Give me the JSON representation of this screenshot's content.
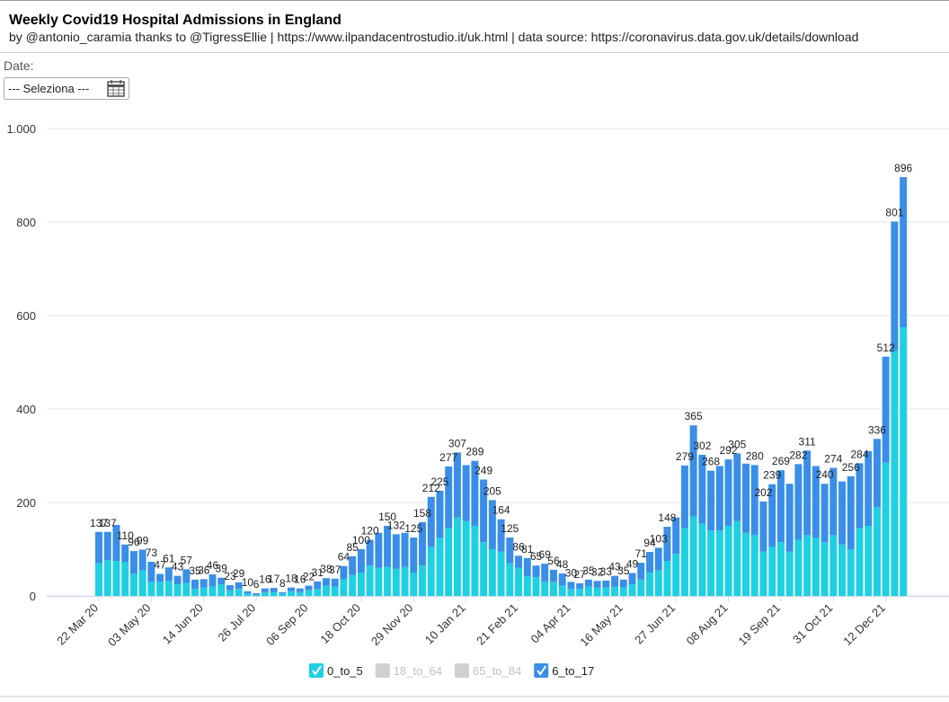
{
  "header": {
    "title": "Weekly Covid19 Hospital Admissions in England",
    "subtitle": "by @antonio_caramia thanks to @TigressEllie | https://www.ilpandacentrostudio.it/uk.html | data source: https://coronavirus.data.gov.uk/details/download"
  },
  "filter": {
    "label": "Date:",
    "placeholder": "--- Seleziona ---"
  },
  "chart_data": {
    "type": "stacked_bar",
    "categories": [
      "22 Mar 20",
      null,
      null,
      null,
      null,
      null,
      "03 May 20",
      null,
      null,
      null,
      null,
      null,
      "14 Jun 20",
      null,
      null,
      null,
      null,
      null,
      "26 Jul 20",
      null,
      null,
      null,
      null,
      null,
      "06 Sep 20",
      null,
      null,
      null,
      null,
      null,
      "18 Oct 20",
      null,
      null,
      null,
      null,
      null,
      "29 Nov 20",
      null,
      null,
      null,
      null,
      null,
      "10 Jan 21",
      null,
      null,
      null,
      null,
      null,
      "21 Feb 21",
      null,
      null,
      null,
      null,
      null,
      "04 Apr 21",
      null,
      null,
      null,
      null,
      null,
      "16 May 21",
      null,
      null,
      null,
      null,
      null,
      "27 Jun 21",
      null,
      null,
      null,
      null,
      null,
      "08 Aug 21",
      null,
      null,
      null,
      null,
      null,
      "19 Sep 21",
      null,
      null,
      null,
      null,
      null,
      "31 Oct 21",
      null,
      null,
      null,
      null,
      null,
      "12 Dec 21",
      null,
      null
    ],
    "series": [
      {
        "name": "0_to_5",
        "color": "#1fd0e3",
        "visible": true,
        "values": [
          70,
          77,
          75,
          72,
          48,
          55,
          30,
          30,
          32,
          25,
          28,
          15,
          18,
          20,
          25,
          12,
          15,
          5,
          3,
          8,
          8,
          5,
          10,
          8,
          12,
          15,
          22,
          20,
          35,
          45,
          50,
          65,
          60,
          62,
          58,
          62,
          50,
          65,
          105,
          125,
          145,
          168,
          160,
          150,
          115,
          100,
          95,
          70,
          60,
          42,
          40,
          30,
          30,
          22,
          15,
          15,
          20,
          18,
          18,
          20,
          18,
          25,
          35,
          50,
          55,
          75,
          90,
          145,
          170,
          155,
          140,
          140,
          150,
          160,
          135,
          130,
          95,
          105,
          115,
          95,
          120,
          130,
          125,
          115,
          130,
          110,
          100,
          145,
          150,
          190,
          285,
          525,
          575
        ]
      },
      {
        "name": "18_to_64",
        "color": "#cccccc",
        "visible": false
      },
      {
        "name": "65_to_84",
        "color": "#cccccc",
        "visible": false
      },
      {
        "name": "6_to_17",
        "color": "#3a8ee8",
        "visible": true,
        "values": [
          67,
          60,
          77,
          38,
          48,
          44,
          43,
          17,
          29,
          18,
          29,
          20,
          18,
          26,
          14,
          11,
          14,
          5,
          3,
          8,
          9,
          3,
          8,
          8,
          10,
          16,
          16,
          17,
          29,
          40,
          50,
          55,
          75,
          88,
          74,
          73,
          75,
          93,
          107,
          100,
          132,
          139,
          120,
          139,
          134,
          105,
          69,
          55,
          26,
          39,
          25,
          39,
          26,
          26,
          15,
          12,
          15,
          14,
          15,
          23,
          17,
          24,
          36,
          44,
          48,
          73,
          78,
          134,
          195,
          147,
          128,
          138,
          142,
          145,
          148,
          150,
          107,
          134,
          154,
          145,
          162,
          181,
          153,
          125,
          144,
          135,
          156,
          139,
          160,
          146,
          227,
          276,
          321
        ]
      }
    ],
    "total_labels": [
      137,
      137,
      null,
      110,
      96,
      99,
      73,
      47,
      61,
      43,
      57,
      35,
      36,
      46,
      39,
      23,
      29,
      10,
      6,
      16,
      17,
      8,
      18,
      16,
      22,
      31,
      38,
      37,
      64,
      85,
      100,
      120,
      null,
      150,
      132,
      null,
      125,
      158,
      212,
      225,
      277,
      307,
      null,
      289,
      249,
      205,
      164,
      125,
      86,
      81,
      65,
      69,
      56,
      48,
      30,
      27,
      35,
      32,
      33,
      43,
      35,
      49,
      71,
      94,
      103,
      148,
      null,
      279,
      365,
      302,
      268,
      null,
      292,
      305,
      null,
      280,
      202,
      239,
      269,
      null,
      282,
      311,
      null,
      240,
      274,
      null,
      256,
      284,
      null,
      336,
      512,
      801,
      896
    ],
    "ylim": [
      0,
      1000
    ],
    "yticks": [
      0,
      200,
      400,
      600,
      800,
      {
        "value": 1000,
        "label": "1.000"
      }
    ],
    "grid": true
  }
}
